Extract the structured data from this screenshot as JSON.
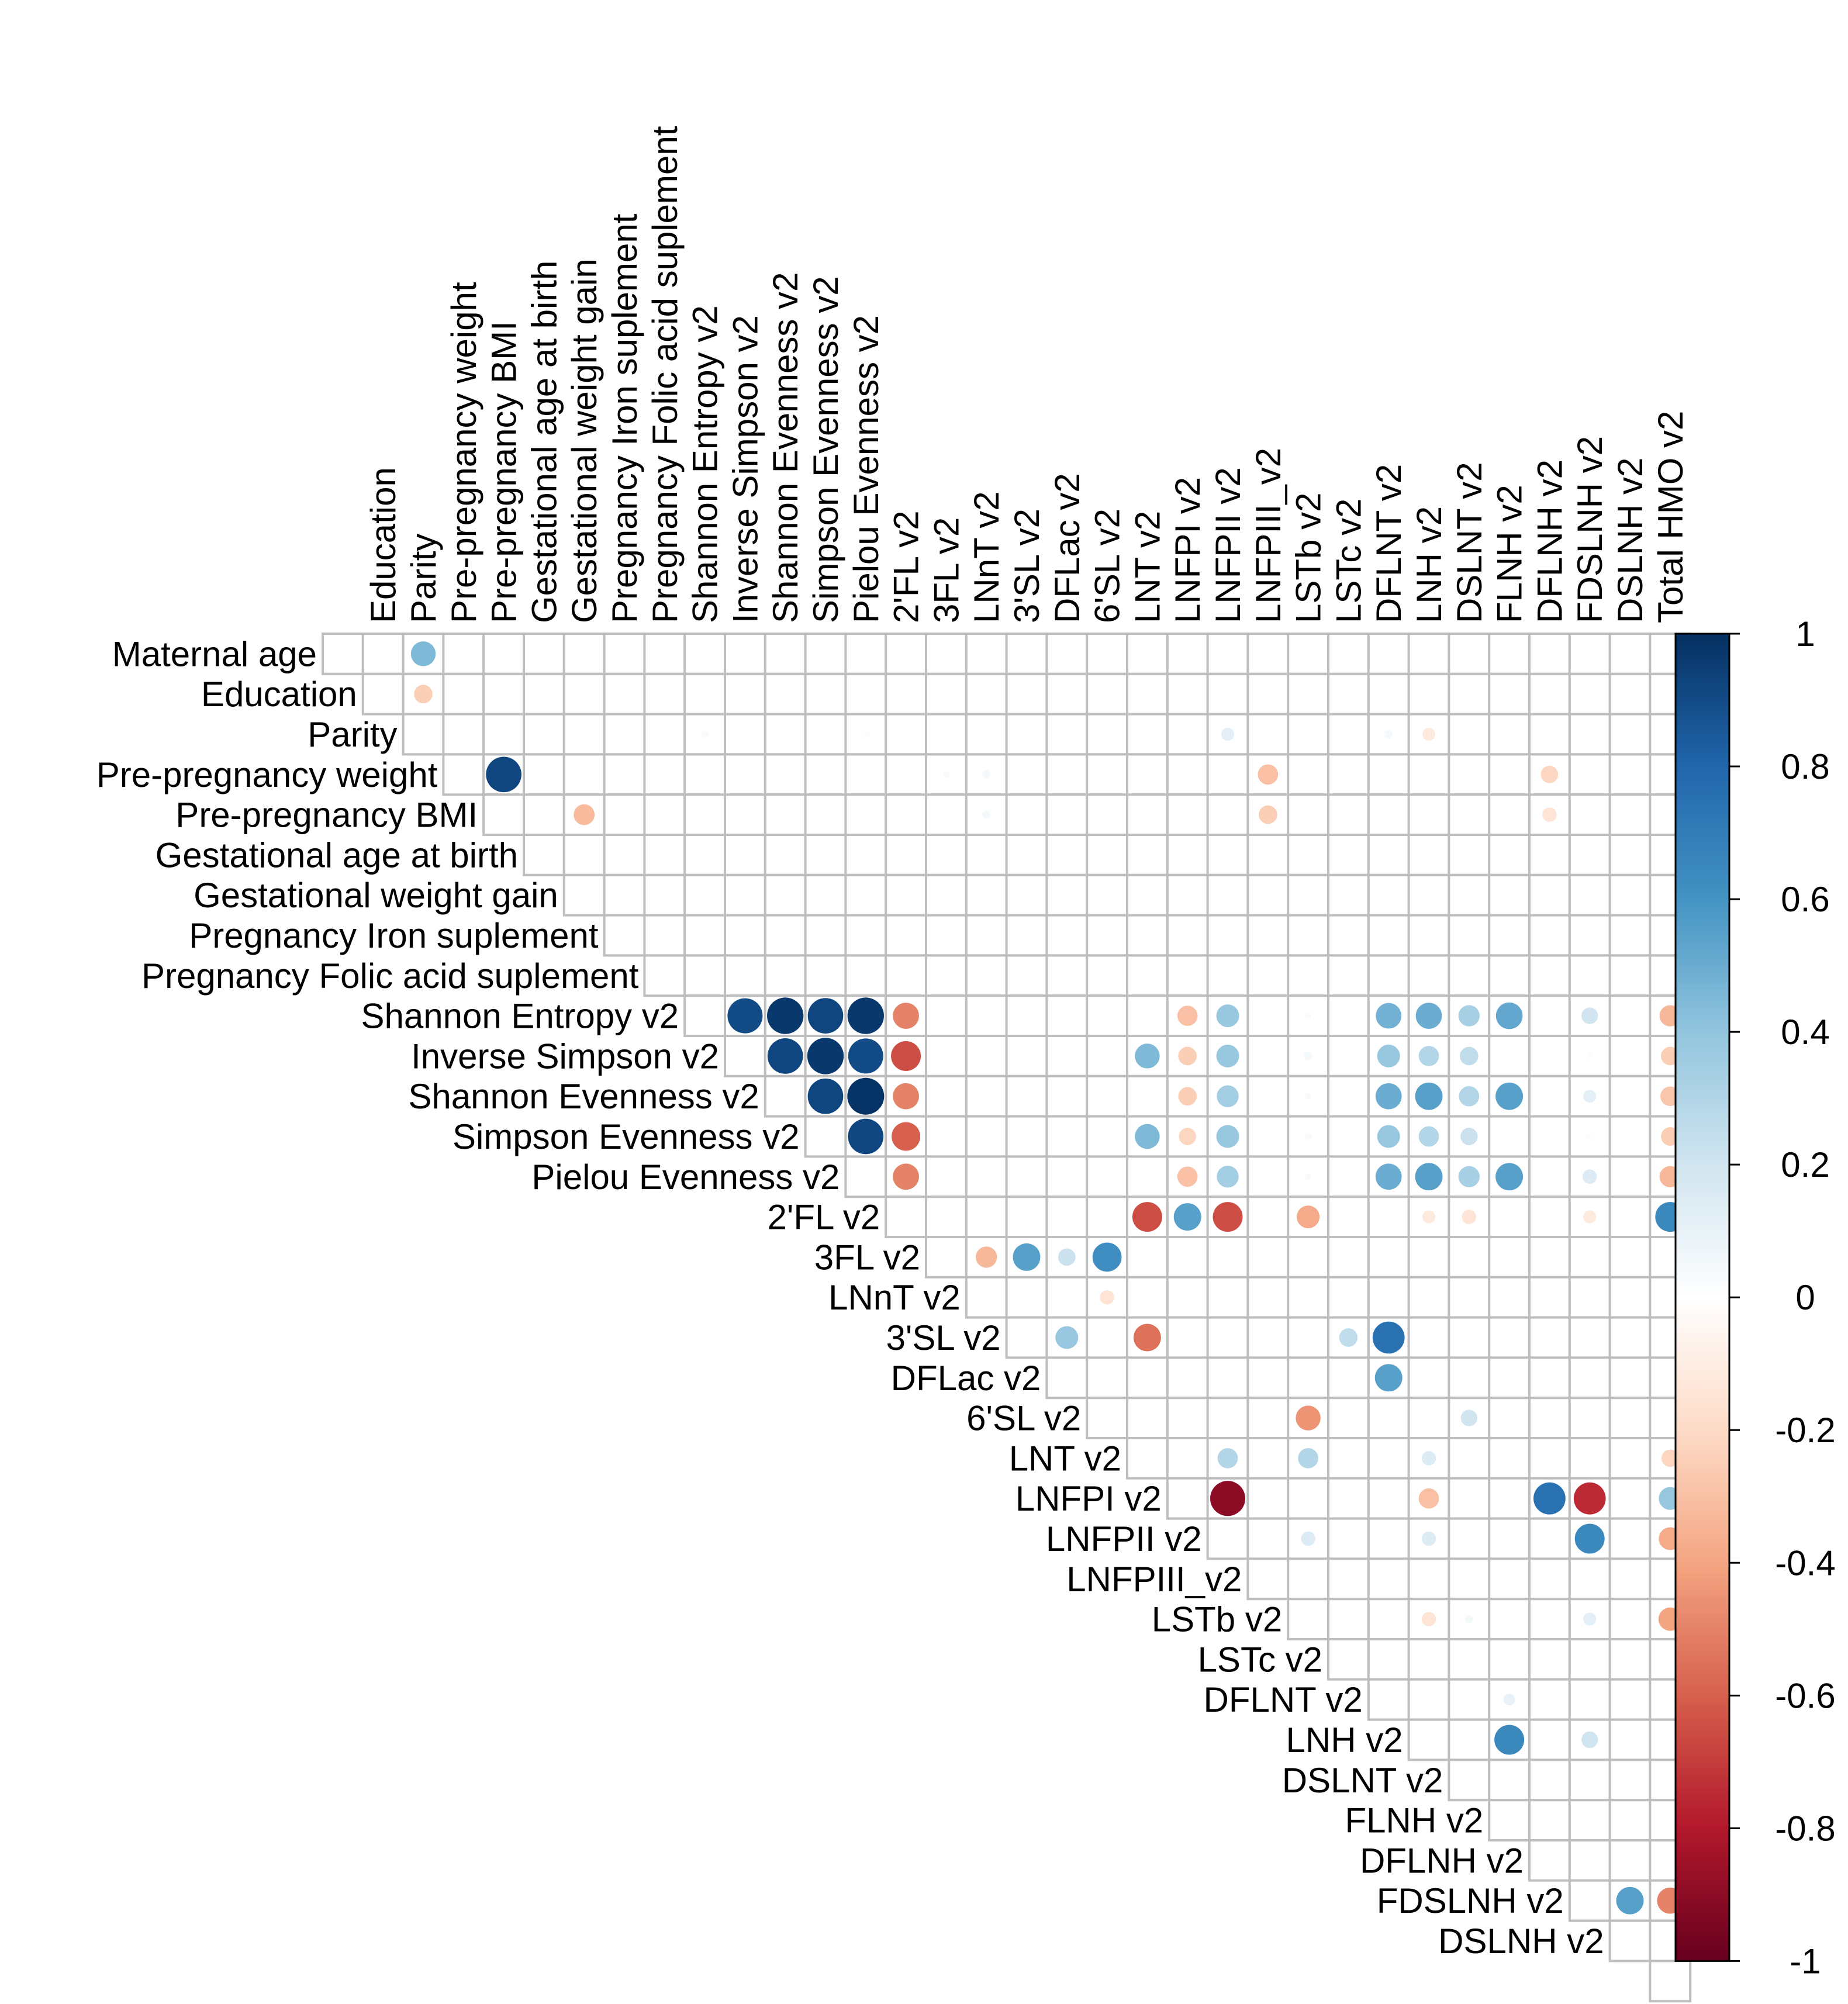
{
  "chart_data": {
    "type": "heatmap",
    "style": "upper-triangle correlation matrix, circle glyphs sized and coloured by correlation",
    "variables": [
      "Maternal age",
      "Education",
      "Parity",
      "Pre-pregnancy weight",
      "Pre-pregnancy BMI",
      "Gestational age at birth",
      "Gestational weight gain",
      "Pregnancy Iron suplement",
      "Pregnancy Folic acid suplement",
      "Shannon Entropy v2",
      "Inverse Simpson v2",
      "Shannon Evenness v2",
      "Simpson Evenness v2",
      "Pielou Evenness v2",
      "2'FL v2",
      "3FL v2",
      "LNnT v2",
      "3'SL v2",
      "DFLac v2",
      "6'SL v2",
      "LNT v2",
      "LNFPI v2",
      "LNFPII v2",
      "LNFPIII_v2",
      "LSTb v2",
      "LSTc v2",
      "DFLNT v2",
      "LNH v2",
      "DSLNT v2",
      "FLNH v2",
      "DFLNH v2",
      "FDSLNH v2",
      "DSLNH v2",
      "Total HMO v2"
    ],
    "correlations": [
      {
        "row": "Maternal age",
        "col": "Parity",
        "value": 0.45
      },
      {
        "row": "Education",
        "col": "Parity",
        "value": -0.25
      },
      {
        "row": "Parity",
        "col": "Shannon Entropy v2",
        "value": 0.03
      },
      {
        "row": "Parity",
        "col": "Pielou Evenness v2",
        "value": 0.02
      },
      {
        "row": "Parity",
        "col": "LNFPII v2",
        "value": 0.12
      },
      {
        "row": "Parity",
        "col": "DFLNT v2",
        "value": 0.05
      },
      {
        "row": "Parity",
        "col": "LNH v2",
        "value": -0.12
      },
      {
        "row": "Pre-pregnancy weight",
        "col": "Pre-pregnancy BMI",
        "value": 0.92
      },
      {
        "row": "Pre-pregnancy weight",
        "col": "3FL v2",
        "value": 0.03
      },
      {
        "row": "Pre-pregnancy weight",
        "col": "LNnT v2",
        "value": 0.05
      },
      {
        "row": "Pre-pregnancy weight",
        "col": "LNFPIII_v2",
        "value": -0.3
      },
      {
        "row": "Pre-pregnancy weight",
        "col": "DFLNH v2",
        "value": -0.22
      },
      {
        "row": "Pre-pregnancy BMI",
        "col": "Gestational weight gain",
        "value": -0.32
      },
      {
        "row": "Pre-pregnancy BMI",
        "col": "LNnT v2",
        "value": 0.05
      },
      {
        "row": "Pre-pregnancy BMI",
        "col": "LNFPIII_v2",
        "value": -0.25
      },
      {
        "row": "Pre-pregnancy BMI",
        "col": "DFLNH v2",
        "value": -0.15
      },
      {
        "row": "Shannon Entropy v2",
        "col": "Inverse Simpson v2",
        "value": 0.9
      },
      {
        "row": "Shannon Entropy v2",
        "col": "Shannon Evenness v2",
        "value": 0.97
      },
      {
        "row": "Shannon Entropy v2",
        "col": "Simpson Evenness v2",
        "value": 0.92
      },
      {
        "row": "Shannon Entropy v2",
        "col": "Pielou Evenness v2",
        "value": 0.97
      },
      {
        "row": "Shannon Entropy v2",
        "col": "2'FL v2",
        "value": -0.5
      },
      {
        "row": "Shannon Entropy v2",
        "col": "LNFPI v2",
        "value": -0.3
      },
      {
        "row": "Shannon Entropy v2",
        "col": "LNFPII v2",
        "value": 0.38
      },
      {
        "row": "Shannon Entropy v2",
        "col": "LSTb v2",
        "value": 0.03
      },
      {
        "row": "Shannon Entropy v2",
        "col": "DFLNT v2",
        "value": 0.48
      },
      {
        "row": "Shannon Entropy v2",
        "col": "LNH v2",
        "value": 0.5
      },
      {
        "row": "Shannon Entropy v2",
        "col": "DSLNT v2",
        "value": 0.33
      },
      {
        "row": "Shannon Entropy v2",
        "col": "FLNH v2",
        "value": 0.52
      },
      {
        "row": "Shannon Entropy v2",
        "col": "FDSLNH v2",
        "value": 0.2
      },
      {
        "row": "Shannon Entropy v2",
        "col": "Total HMO v2",
        "value": -0.33
      },
      {
        "row": "Inverse Simpson v2",
        "col": "Shannon Evenness v2",
        "value": 0.92
      },
      {
        "row": "Inverse Simpson v2",
        "col": "Simpson Evenness v2",
        "value": 0.97
      },
      {
        "row": "Inverse Simpson v2",
        "col": "Pielou Evenness v2",
        "value": 0.9
      },
      {
        "row": "Inverse Simpson v2",
        "col": "2'FL v2",
        "value": -0.65
      },
      {
        "row": "Inverse Simpson v2",
        "col": "LNT v2",
        "value": 0.45
      },
      {
        "row": "Inverse Simpson v2",
        "col": "LNFPI v2",
        "value": -0.25
      },
      {
        "row": "Inverse Simpson v2",
        "col": "LNFPII v2",
        "value": 0.38
      },
      {
        "row": "Inverse Simpson v2",
        "col": "LSTb v2",
        "value": 0.05
      },
      {
        "row": "Inverse Simpson v2",
        "col": "DFLNT v2",
        "value": 0.38
      },
      {
        "row": "Inverse Simpson v2",
        "col": "LNH v2",
        "value": 0.3
      },
      {
        "row": "Inverse Simpson v2",
        "col": "DSLNT v2",
        "value": 0.25
      },
      {
        "row": "Inverse Simpson v2",
        "col": "FDSLNH v2",
        "value": 0.02
      },
      {
        "row": "Inverse Simpson v2",
        "col": "Total HMO v2",
        "value": -0.25
      },
      {
        "row": "Shannon Evenness v2",
        "col": "Simpson Evenness v2",
        "value": 0.92
      },
      {
        "row": "Shannon Evenness v2",
        "col": "Pielou Evenness v2",
        "value": 0.99
      },
      {
        "row": "Shannon Evenness v2",
        "col": "2'FL v2",
        "value": -0.5
      },
      {
        "row": "Shannon Evenness v2",
        "col": "LNFPI v2",
        "value": -0.25
      },
      {
        "row": "Shannon Evenness v2",
        "col": "LNFPII v2",
        "value": 0.35
      },
      {
        "row": "Shannon Evenness v2",
        "col": "LSTb v2",
        "value": 0.03
      },
      {
        "row": "Shannon Evenness v2",
        "col": "DFLNT v2",
        "value": 0.5
      },
      {
        "row": "Shannon Evenness v2",
        "col": "LNH v2",
        "value": 0.55
      },
      {
        "row": "Shannon Evenness v2",
        "col": "DSLNT v2",
        "value": 0.3
      },
      {
        "row": "Shannon Evenness v2",
        "col": "FLNH v2",
        "value": 0.55
      },
      {
        "row": "Shannon Evenness v2",
        "col": "FDSLNH v2",
        "value": 0.12
      },
      {
        "row": "Shannon Evenness v2",
        "col": "Total HMO v2",
        "value": -0.28
      },
      {
        "row": "Simpson Evenness v2",
        "col": "Pielou Evenness v2",
        "value": 0.92
      },
      {
        "row": "Simpson Evenness v2",
        "col": "2'FL v2",
        "value": -0.6
      },
      {
        "row": "Simpson Evenness v2",
        "col": "LNT v2",
        "value": 0.45
      },
      {
        "row": "Simpson Evenness v2",
        "col": "LNFPI v2",
        "value": -0.22
      },
      {
        "row": "Simpson Evenness v2",
        "col": "LNFPII v2",
        "value": 0.38
      },
      {
        "row": "Simpson Evenness v2",
        "col": "LSTb v2",
        "value": 0.03
      },
      {
        "row": "Simpson Evenness v2",
        "col": "DFLNT v2",
        "value": 0.38
      },
      {
        "row": "Simpson Evenness v2",
        "col": "LNH v2",
        "value": 0.3
      },
      {
        "row": "Simpson Evenness v2",
        "col": "DSLNT v2",
        "value": 0.22
      },
      {
        "row": "Simpson Evenness v2",
        "col": "FDSLNH v2",
        "value": 0.02
      },
      {
        "row": "Simpson Evenness v2",
        "col": "Total HMO v2",
        "value": -0.25
      },
      {
        "row": "Pielou Evenness v2",
        "col": "2'FL v2",
        "value": -0.5
      },
      {
        "row": "Pielou Evenness v2",
        "col": "LNFPI v2",
        "value": -0.3
      },
      {
        "row": "Pielou Evenness v2",
        "col": "LNFPII v2",
        "value": 0.35
      },
      {
        "row": "Pielou Evenness v2",
        "col": "LSTb v2",
        "value": 0.03
      },
      {
        "row": "Pielou Evenness v2",
        "col": "DFLNT v2",
        "value": 0.5
      },
      {
        "row": "Pielou Evenness v2",
        "col": "LNH v2",
        "value": 0.55
      },
      {
        "row": "Pielou Evenness v2",
        "col": "DSLNT v2",
        "value": 0.33
      },
      {
        "row": "Pielou Evenness v2",
        "col": "FLNH v2",
        "value": 0.55
      },
      {
        "row": "Pielou Evenness v2",
        "col": "FDSLNH v2",
        "value": 0.15
      },
      {
        "row": "Pielou Evenness v2",
        "col": "Total HMO v2",
        "value": -0.33
      },
      {
        "row": "2'FL v2",
        "col": "LNT v2",
        "value": -0.65
      },
      {
        "row": "2'FL v2",
        "col": "LNFPI v2",
        "value": 0.55
      },
      {
        "row": "2'FL v2",
        "col": "LNFPII v2",
        "value": -0.65
      },
      {
        "row": "2'FL v2",
        "col": "LSTb v2",
        "value": -0.38
      },
      {
        "row": "2'FL v2",
        "col": "LNH v2",
        "value": -0.12
      },
      {
        "row": "2'FL v2",
        "col": "DSLNT v2",
        "value": -0.15
      },
      {
        "row": "2'FL v2",
        "col": "FDSLNH v2",
        "value": -0.12
      },
      {
        "row": "2'FL v2",
        "col": "Total HMO v2",
        "value": 0.65
      },
      {
        "row": "3FL v2",
        "col": "LNnT v2",
        "value": -0.33
      },
      {
        "row": "3FL v2",
        "col": "3'SL v2",
        "value": 0.55
      },
      {
        "row": "3FL v2",
        "col": "DFLac v2",
        "value": 0.22
      },
      {
        "row": "3FL v2",
        "col": "6'SL v2",
        "value": 0.62
      },
      {
        "row": "LNnT v2",
        "col": "6'SL v2",
        "value": -0.15
      },
      {
        "row": "3'SL v2",
        "col": "DFLac v2",
        "value": 0.38
      },
      {
        "row": "3'SL v2",
        "col": "LNT v2",
        "value": -0.55
      },
      {
        "row": "3'SL v2",
        "col": "LSTc v2",
        "value": 0.25
      },
      {
        "row": "3'SL v2",
        "col": "DFLNT v2",
        "value": 0.75
      },
      {
        "row": "DFLac v2",
        "col": "DFLNT v2",
        "value": 0.55
      },
      {
        "row": "6'SL v2",
        "col": "LSTb v2",
        "value": -0.45
      },
      {
        "row": "6'SL v2",
        "col": "DSLNT v2",
        "value": 0.2
      },
      {
        "row": "LNT v2",
        "col": "LNFPII v2",
        "value": 0.3
      },
      {
        "row": "LNT v2",
        "col": "LSTb v2",
        "value": 0.3
      },
      {
        "row": "LNT v2",
        "col": "LNH v2",
        "value": 0.15
      },
      {
        "row": "LNT v2",
        "col": "Total HMO v2",
        "value": -0.22
      },
      {
        "row": "LNFPI v2",
        "col": "LNFPII v2",
        "value": -0.9
      },
      {
        "row": "LNFPI v2",
        "col": "LNH v2",
        "value": -0.3
      },
      {
        "row": "LNFPI v2",
        "col": "DFLNH v2",
        "value": 0.75
      },
      {
        "row": "LNFPI v2",
        "col": "FDSLNH v2",
        "value": -0.75
      },
      {
        "row": "LNFPI v2",
        "col": "Total HMO v2",
        "value": 0.38
      },
      {
        "row": "LNFPII v2",
        "col": "LSTb v2",
        "value": 0.15
      },
      {
        "row": "LNFPII v2",
        "col": "LNH v2",
        "value": 0.15
      },
      {
        "row": "LNFPII v2",
        "col": "FDSLNH v2",
        "value": 0.65
      },
      {
        "row": "LNFPII v2",
        "col": "Total HMO v2",
        "value": -0.38
      },
      {
        "row": "LSTb v2",
        "col": "LNH v2",
        "value": -0.15
      },
      {
        "row": "LSTb v2",
        "col": "DSLNT v2",
        "value": 0.05
      },
      {
        "row": "LSTb v2",
        "col": "FDSLNH v2",
        "value": 0.12
      },
      {
        "row": "LSTb v2",
        "col": "Total HMO v2",
        "value": -0.4
      },
      {
        "row": "DFLNT v2",
        "col": "FLNH v2",
        "value": 0.1
      },
      {
        "row": "LNH v2",
        "col": "FLNH v2",
        "value": 0.65
      },
      {
        "row": "LNH v2",
        "col": "FDSLNH v2",
        "value": 0.2
      },
      {
        "row": "FDSLNH v2",
        "col": "DSLNH v2",
        "value": 0.55
      },
      {
        "row": "FDSLNH v2",
        "col": "Total HMO v2",
        "value": -0.5
      }
    ],
    "colorbar": {
      "range": [
        -1,
        1
      ],
      "ticks": [
        {
          "label": "1",
          "value": 1
        },
        {
          "label": "0.8",
          "value": 0.8
        },
        {
          "label": "0.6",
          "value": 0.6
        },
        {
          "label": "0.4",
          "value": 0.4
        },
        {
          "label": "0.2",
          "value": 0.2
        },
        {
          "label": "0",
          "value": 0
        },
        {
          "label": "-0.2",
          "value": -0.2
        },
        {
          "label": "-0.4",
          "value": -0.4
        },
        {
          "label": "-0.6",
          "value": -0.6
        },
        {
          "label": "-0.8",
          "value": -0.8
        },
        {
          "label": "-1",
          "value": -1
        }
      ],
      "colors": [
        "#67001F",
        "#B2182B",
        "#D6604D",
        "#F4A582",
        "#FDDBC7",
        "#FFFFFF",
        "#D1E5F0",
        "#92C5DE",
        "#4393C3",
        "#2166AC",
        "#053061"
      ]
    },
    "grid_color": "#BEBEBE"
  }
}
